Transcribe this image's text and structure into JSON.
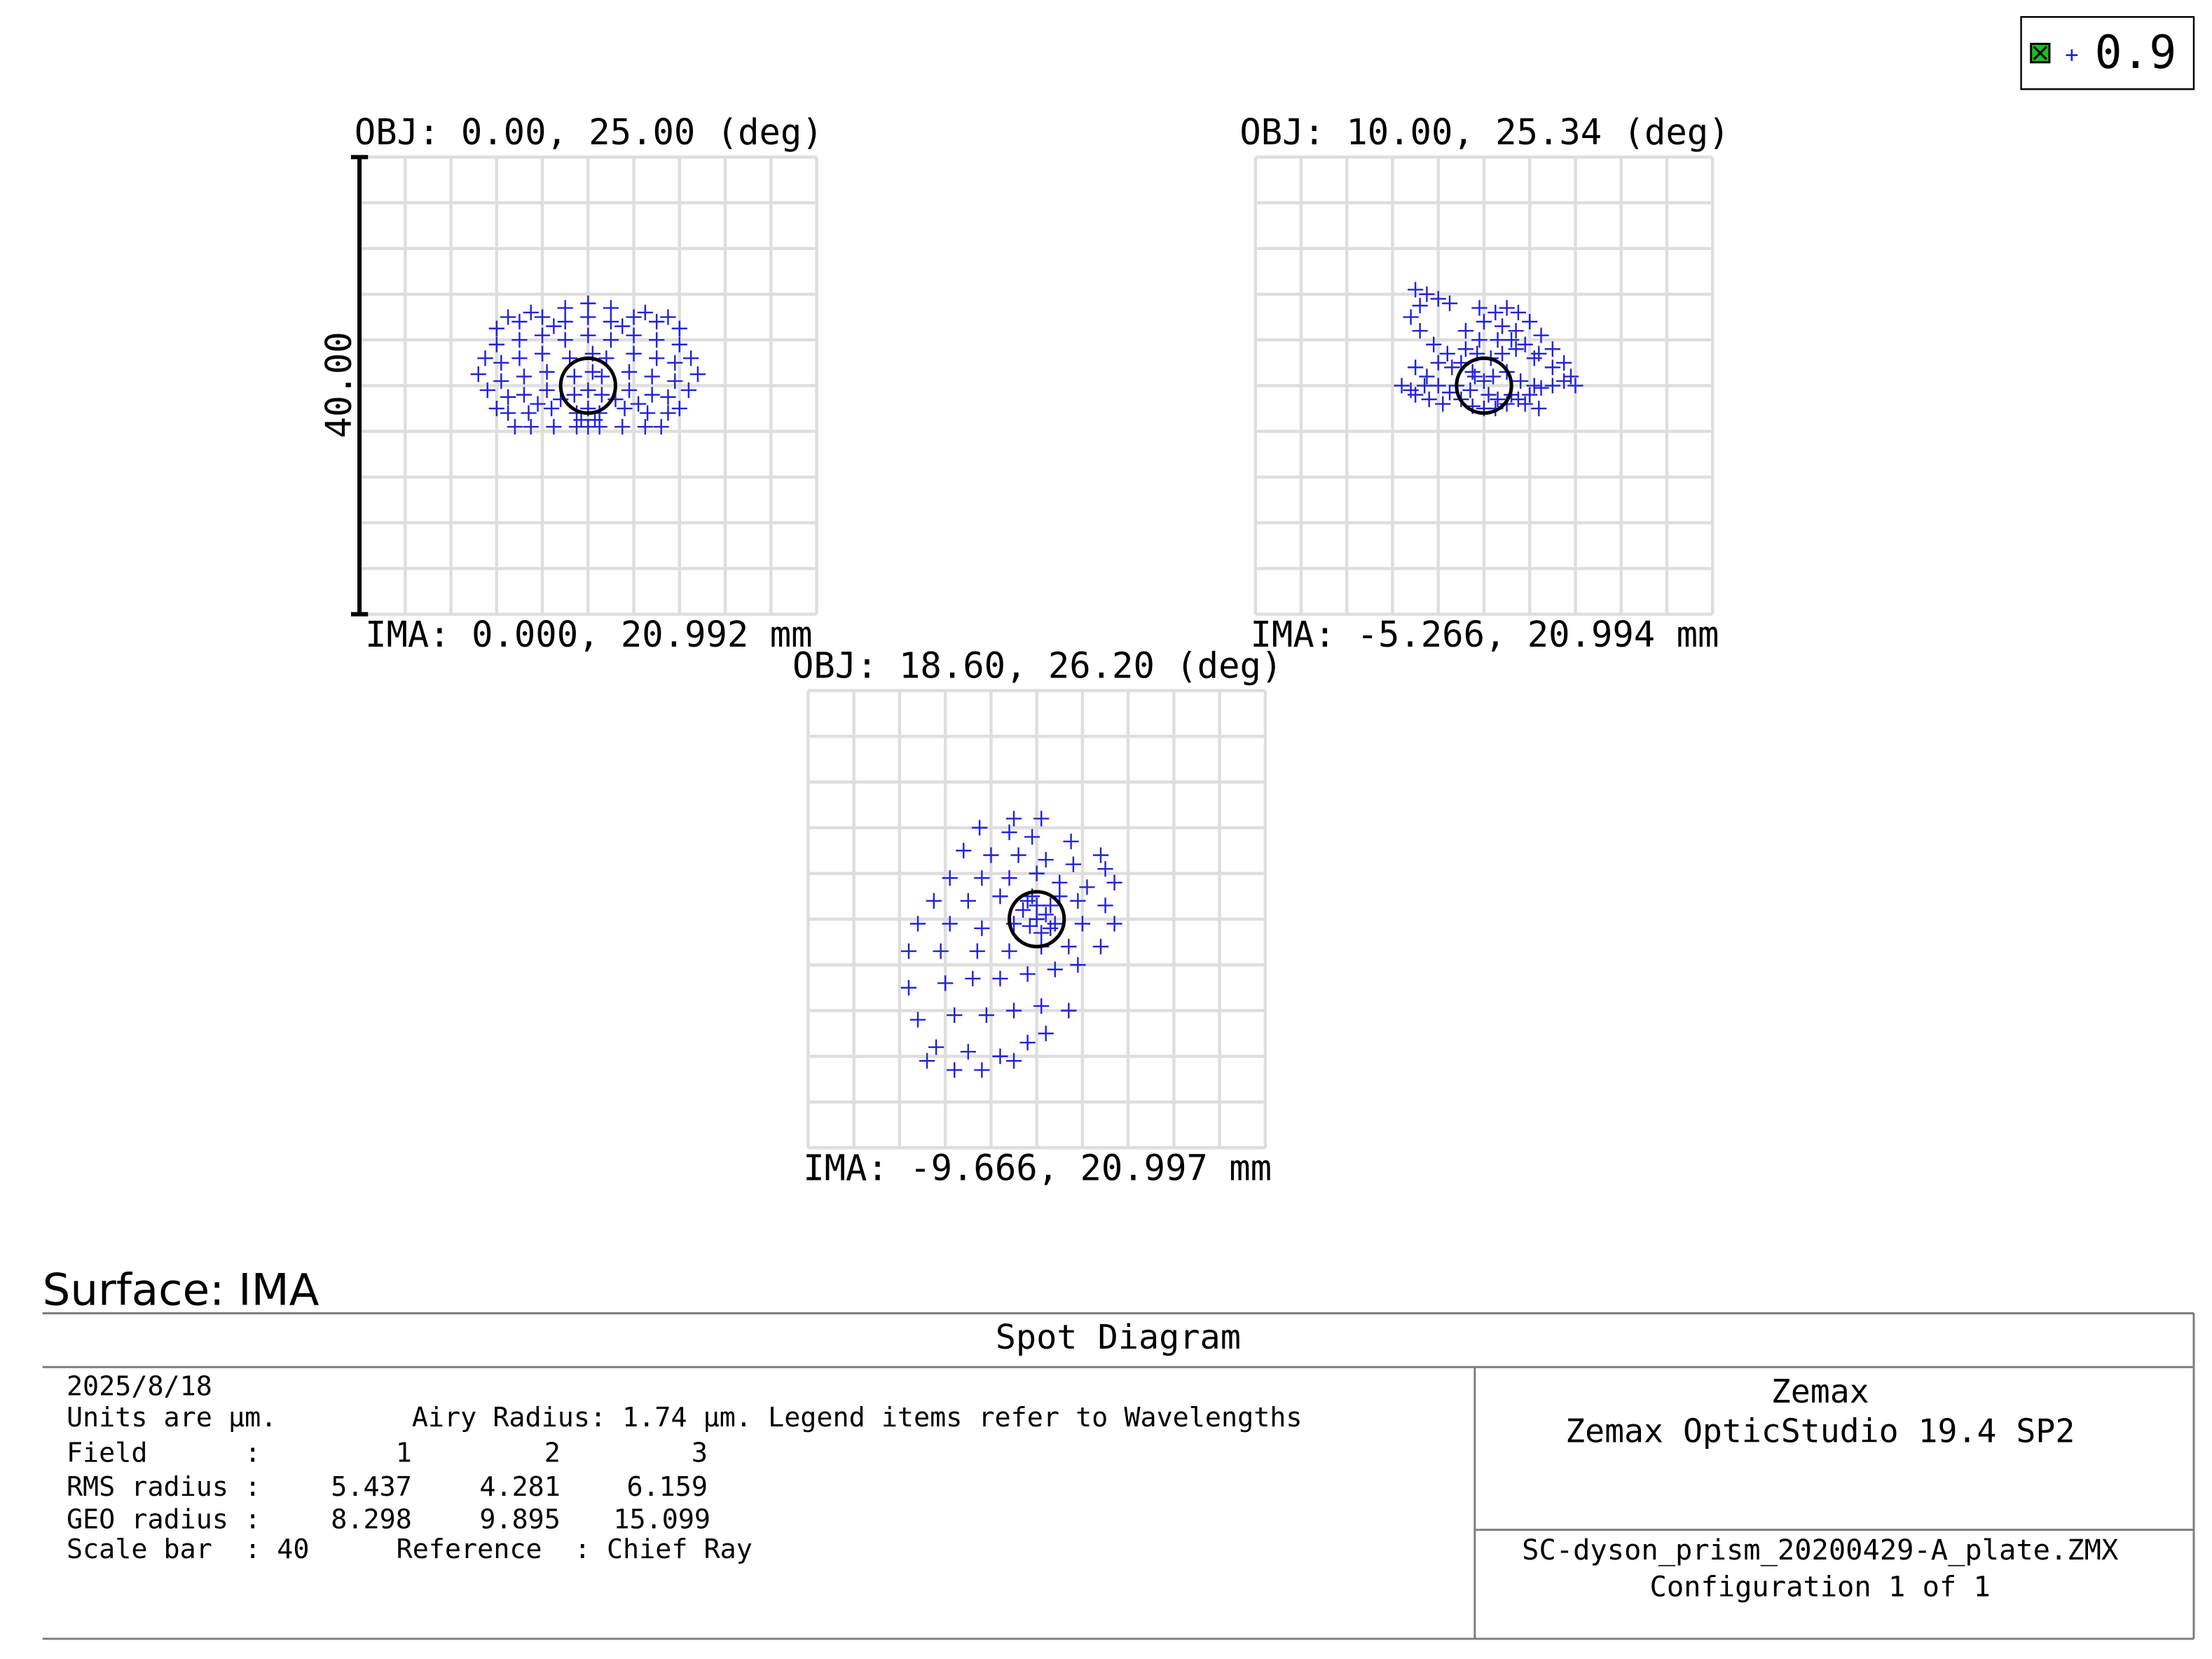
{
  "legend": {
    "label": "0.9",
    "icon": "green-check-box-icon",
    "marker": "+"
  },
  "colors": {
    "spot": "#2222dd",
    "grid": "#dedede",
    "airy": "#000000",
    "legend_check": "#22bb22"
  },
  "chart_data": [
    {
      "type": "scatter",
      "obj_label": "OBJ: 0.00, 25.00 (deg)",
      "ima_label": "IMA: 0.000, 20.992 mm",
      "scale_bar_label": "40.00",
      "xlim": [
        -100,
        100
      ],
      "ylim": [
        -100,
        100
      ],
      "airy_radius": 12,
      "grid": true,
      "points": [
        [
          -40,
          25
        ],
        [
          -40,
          18
        ],
        [
          -38,
          10
        ],
        [
          -38,
          2
        ],
        [
          -35,
          -5
        ],
        [
          -35,
          -12
        ],
        [
          -32,
          -18
        ],
        [
          -30,
          28
        ],
        [
          -30,
          20
        ],
        [
          -30,
          12
        ],
        [
          -28,
          4
        ],
        [
          -28,
          -4
        ],
        [
          -26,
          -12
        ],
        [
          -25,
          -18
        ],
        [
          -20,
          30
        ],
        [
          -20,
          22
        ],
        [
          -20,
          14
        ],
        [
          -18,
          6
        ],
        [
          -18,
          -2
        ],
        [
          -16,
          -10
        ],
        [
          -15,
          -18
        ],
        [
          -10,
          34
        ],
        [
          -10,
          28
        ],
        [
          -10,
          20
        ],
        [
          -8,
          12
        ],
        [
          -6,
          4
        ],
        [
          -6,
          -4
        ],
        [
          -5,
          -12
        ],
        [
          -5,
          -18
        ],
        [
          0,
          36
        ],
        [
          0,
          30
        ],
        [
          0,
          22
        ],
        [
          2,
          14
        ],
        [
          2,
          6
        ],
        [
          0,
          -2
        ],
        [
          0,
          -10
        ],
        [
          0,
          -18
        ],
        [
          10,
          34
        ],
        [
          10,
          28
        ],
        [
          10,
          20
        ],
        [
          8,
          12
        ],
        [
          6,
          4
        ],
        [
          6,
          -4
        ],
        [
          5,
          -12
        ],
        [
          5,
          -18
        ],
        [
          20,
          30
        ],
        [
          20,
          22
        ],
        [
          20,
          14
        ],
        [
          18,
          6
        ],
        [
          18,
          -2
        ],
        [
          16,
          -10
        ],
        [
          15,
          -18
        ],
        [
          30,
          28
        ],
        [
          30,
          20
        ],
        [
          30,
          12
        ],
        [
          28,
          4
        ],
        [
          28,
          -4
        ],
        [
          26,
          -12
        ],
        [
          25,
          -18
        ],
        [
          40,
          25
        ],
        [
          40,
          18
        ],
        [
          38,
          10
        ],
        [
          38,
          2
        ],
        [
          35,
          -5
        ],
        [
          35,
          -12
        ],
        [
          32,
          -18
        ],
        [
          -25,
          32
        ],
        [
          25,
          32
        ],
        [
          -35,
          30
        ],
        [
          35,
          30
        ],
        [
          -45,
          12
        ],
        [
          45,
          12
        ],
        [
          -48,
          5
        ],
        [
          48,
          5
        ],
        [
          -44,
          -2
        ],
        [
          44,
          -2
        ],
        [
          -40,
          -10
        ],
        [
          40,
          -10
        ],
        [
          -22,
          -8
        ],
        [
          22,
          -8
        ],
        [
          -12,
          -6
        ],
        [
          12,
          -6
        ],
        [
          -3,
          -15
        ],
        [
          3,
          -15
        ],
        [
          -15,
          26
        ],
        [
          15,
          26
        ]
      ]
    },
    {
      "type": "scatter",
      "obj_label": "OBJ: 10.00, 25.34 (deg)",
      "ima_label": "IMA: -5.266, 20.994 mm",
      "scale_bar_label": "",
      "xlim": [
        -100,
        100
      ],
      "ylim": [
        -100,
        100
      ],
      "airy_radius": 12,
      "grid": true,
      "points": [
        [
          -30,
          42
        ],
        [
          -25,
          40
        ],
        [
          -20,
          38
        ],
        [
          -15,
          36
        ],
        [
          -28,
          35
        ],
        [
          -32,
          30
        ],
        [
          -28,
          24
        ],
        [
          -22,
          18
        ],
        [
          -16,
          14
        ],
        [
          -10,
          10
        ],
        [
          -5,
          6
        ],
        [
          0,
          2
        ],
        [
          -30,
          8
        ],
        [
          -25,
          4
        ],
        [
          -20,
          0
        ],
        [
          -15,
          -3
        ],
        [
          -10,
          -6
        ],
        [
          -5,
          -9
        ],
        [
          0,
          -10
        ],
        [
          5,
          -10
        ],
        [
          10,
          -8
        ],
        [
          15,
          -6
        ],
        [
          20,
          -4
        ],
        [
          25,
          -1
        ],
        [
          30,
          0
        ],
        [
          35,
          2
        ],
        [
          40,
          0
        ],
        [
          38,
          4
        ],
        [
          30,
          8
        ],
        [
          22,
          12
        ],
        [
          14,
          16
        ],
        [
          6,
          20
        ],
        [
          0,
          28
        ],
        [
          5,
          32
        ],
        [
          10,
          34
        ],
        [
          15,
          32
        ],
        [
          20,
          28
        ],
        [
          25,
          22
        ],
        [
          30,
          16
        ],
        [
          35,
          10
        ],
        [
          -2,
          20
        ],
        [
          -8,
          16
        ],
        [
          -14,
          8
        ],
        [
          -20,
          10
        ],
        [
          -26,
          0
        ],
        [
          -32,
          -2
        ],
        [
          -36,
          0
        ],
        [
          -12,
          0
        ],
        [
          -6,
          -2
        ],
        [
          4,
          4
        ],
        [
          10,
          6
        ],
        [
          16,
          2
        ],
        [
          22,
          0
        ],
        [
          12,
          20
        ],
        [
          18,
          18
        ],
        [
          24,
          14
        ],
        [
          -3,
          14
        ],
        [
          3,
          12
        ],
        [
          8,
          14
        ],
        [
          2,
          -4
        ],
        [
          -4,
          4
        ],
        [
          6,
          -6
        ],
        [
          12,
          -4
        ],
        [
          18,
          -8
        ],
        [
          24,
          -10
        ],
        [
          -18,
          -8
        ],
        [
          -24,
          -6
        ],
        [
          -30,
          -4
        ],
        [
          -8,
          24
        ],
        [
          -2,
          34
        ],
        [
          8,
          26
        ],
        [
          14,
          24
        ]
      ]
    },
    {
      "type": "scatter",
      "obj_label": "OBJ: 18.60, 26.20 (deg)",
      "ima_label": "IMA: -9.666, 20.997 mm",
      "scale_bar_label": "",
      "xlim": [
        -100,
        100
      ],
      "ylim": [
        -100,
        100
      ],
      "airy_radius": 12,
      "grid": true,
      "points": [
        [
          -10,
          44
        ],
        [
          2,
          44
        ],
        [
          -25,
          40
        ],
        [
          -12,
          38
        ],
        [
          -2,
          36
        ],
        [
          15,
          34
        ],
        [
          28,
          28
        ],
        [
          -32,
          30
        ],
        [
          -20,
          28
        ],
        [
          -8,
          28
        ],
        [
          4,
          26
        ],
        [
          16,
          24
        ],
        [
          30,
          22
        ],
        [
          -38,
          18
        ],
        [
          -24,
          18
        ],
        [
          -12,
          18
        ],
        [
          0,
          20
        ],
        [
          10,
          16
        ],
        [
          22,
          14
        ],
        [
          34,
          16
        ],
        [
          -45,
          8
        ],
        [
          -30,
          8
        ],
        [
          -16,
          10
        ],
        [
          -4,
          8
        ],
        [
          6,
          6
        ],
        [
          18,
          8
        ],
        [
          30,
          6
        ],
        [
          -52,
          -2
        ],
        [
          -38,
          -2
        ],
        [
          -24,
          -4
        ],
        [
          -10,
          -2
        ],
        [
          0,
          0
        ],
        [
          8,
          -2
        ],
        [
          20,
          -2
        ],
        [
          34,
          -2
        ],
        [
          -56,
          -14
        ],
        [
          -42,
          -14
        ],
        [
          -26,
          -14
        ],
        [
          -12,
          -14
        ],
        [
          2,
          -12
        ],
        [
          14,
          -12
        ],
        [
          28,
          -12
        ],
        [
          -56,
          -30
        ],
        [
          -40,
          -28
        ],
        [
          -28,
          -26
        ],
        [
          -16,
          -26
        ],
        [
          -4,
          -24
        ],
        [
          8,
          -22
        ],
        [
          18,
          -20
        ],
        [
          -52,
          -44
        ],
        [
          -36,
          -42
        ],
        [
          -22,
          -42
        ],
        [
          -10,
          -40
        ],
        [
          2,
          -38
        ],
        [
          14,
          -40
        ],
        [
          -44,
          -56
        ],
        [
          -30,
          -58
        ],
        [
          -16,
          -60
        ],
        [
          -4,
          -54
        ],
        [
          4,
          -50
        ],
        [
          -48,
          -62
        ],
        [
          -36,
          -66
        ],
        [
          -24,
          -66
        ],
        [
          -10,
          -62
        ],
        [
          4,
          2
        ],
        [
          -3,
          -3
        ],
        [
          2,
          -6
        ],
        [
          -6,
          4
        ],
        [
          0,
          6
        ],
        [
          6,
          -4
        ],
        [
          -2,
          10
        ],
        [
          10,
          10
        ]
      ]
    }
  ],
  "surface_label": "Surface: IMA",
  "info": {
    "title": "Spot Diagram",
    "date": "2025/8/18",
    "units": "Units are µm.",
    "airy_note": "Airy Radius: 1.74 µm. Legend items refer to Wavelengths",
    "field_label": "Field      :",
    "field_1": "1",
    "field_2": "2",
    "field_3": "3",
    "rms_label": "RMS radius :",
    "rms_1": "5.437",
    "rms_2": "4.281",
    "rms_3": "6.159",
    "geo_label": "GEO radius :",
    "geo_1": "8.298",
    "geo_2": "9.895",
    "geo_3": "15.099",
    "scale_bar": "Scale bar  : 40",
    "reference": "Reference  : Chief Ray",
    "company": "Zemax",
    "product": "Zemax OpticStudio 19.4 SP2",
    "file": "SC-dyson_prism_20200429-A_plate.ZMX",
    "configuration": "Configuration 1 of 1"
  }
}
